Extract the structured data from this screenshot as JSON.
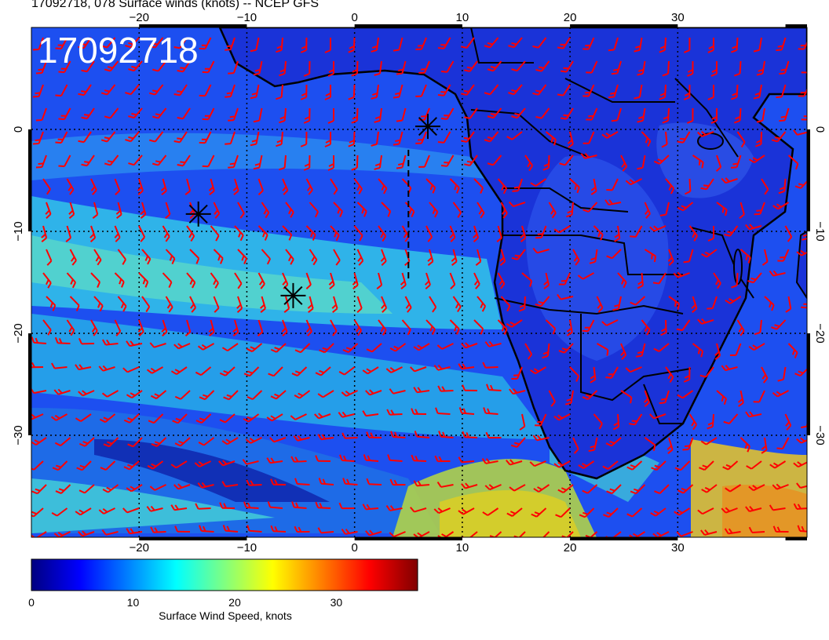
{
  "title": "17092718, 078 Surface winds (knots) -- NCEP GFS",
  "stamp": "17092718",
  "lon_ticks": [
    {
      "value": -20,
      "label": "−20"
    },
    {
      "value": -10,
      "label": "−10"
    },
    {
      "value": 0,
      "label": "0"
    },
    {
      "value": 10,
      "label": "10"
    },
    {
      "value": 20,
      "label": "20"
    },
    {
      "value": 30,
      "label": "30"
    }
  ],
  "lat_ticks": [
    {
      "value": 0,
      "label": "0"
    },
    {
      "value": -10,
      "label": "−10"
    },
    {
      "value": -20,
      "label": "−20"
    },
    {
      "value": -30,
      "label": "−30"
    }
  ],
  "extent": {
    "lon": [
      -30,
      42
    ],
    "lat": [
      -40,
      10
    ]
  },
  "storm_markers": [
    {
      "lon": 6.8,
      "lat": 0.3
    },
    {
      "lon": -14.5,
      "lat": -8.3
    },
    {
      "lon": -5.7,
      "lat": -16.3
    }
  ],
  "track_line": {
    "lon": 5.0,
    "lat_from": -2.0,
    "lat_to": -15.0
  },
  "colorbar": {
    "title": "Surface Wind Speed, knots",
    "min": 0,
    "max": 38,
    "ticks": [
      {
        "value": 0,
        "label": "0"
      },
      {
        "value": 10,
        "label": "10"
      },
      {
        "value": 20,
        "label": "20"
      },
      {
        "value": 30,
        "label": "30"
      }
    ],
    "stops": [
      "#000080",
      "#0000ff",
      "#0080ff",
      "#00ffff",
      "#80ff80",
      "#ffff00",
      "#ff8000",
      "#ff0000",
      "#800000"
    ]
  },
  "colors": {
    "barb": "#ff0000",
    "coast": "#000000",
    "grid": "#000000"
  }
}
